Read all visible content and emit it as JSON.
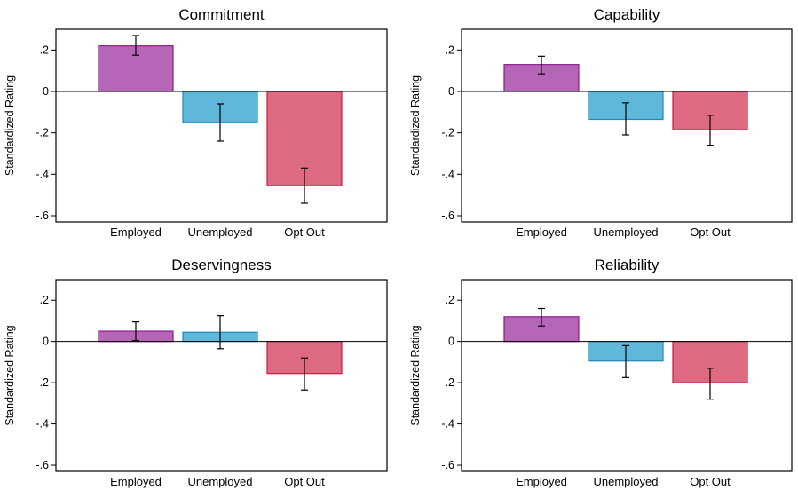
{
  "chart_data": [
    {
      "type": "bar",
      "title": "Commitment",
      "ylabel": "Standardized Rating",
      "xlabel": "",
      "categories": [
        "Employed",
        "Unemployed",
        "Opt Out"
      ],
      "values": [
        0.22,
        -0.15,
        -0.455
      ],
      "ci_low": [
        0.175,
        -0.24,
        -0.54
      ],
      "ci_high": [
        0.27,
        -0.06,
        -0.37
      ],
      "ylim": [
        -0.63,
        0.3
      ],
      "yticks": [
        ".2",
        "0",
        "-.2",
        "-.4",
        "-.6"
      ],
      "ytick_values": [
        0.2,
        0,
        -0.2,
        -0.4,
        -0.6
      ],
      "grid": false
    },
    {
      "type": "bar",
      "title": "Capability",
      "ylabel": "Standardized Rating",
      "xlabel": "",
      "categories": [
        "Employed",
        "Unemployed",
        "Opt Out"
      ],
      "values": [
        0.13,
        -0.135,
        -0.185
      ],
      "ci_low": [
        0.085,
        -0.21,
        -0.26
      ],
      "ci_high": [
        0.17,
        -0.055,
        -0.115
      ],
      "ylim": [
        -0.63,
        0.3
      ],
      "yticks": [
        ".2",
        "0",
        "-.2",
        "-.4",
        "-.6"
      ],
      "ytick_values": [
        0.2,
        0,
        -0.2,
        -0.4,
        -0.6
      ],
      "grid": false
    },
    {
      "type": "bar",
      "title": "Deservingness",
      "ylabel": "Standardized Rating",
      "xlabel": "",
      "categories": [
        "Employed",
        "Unemployed",
        "Opt Out"
      ],
      "values": [
        0.05,
        0.045,
        -0.155
      ],
      "ci_low": [
        0.005,
        -0.035,
        -0.235
      ],
      "ci_high": [
        0.095,
        0.125,
        -0.08
      ],
      "ylim": [
        -0.63,
        0.3
      ],
      "yticks": [
        ".2",
        "0",
        "-.2",
        "-.4",
        "-.6"
      ],
      "ytick_values": [
        0.2,
        0,
        -0.2,
        -0.4,
        -0.6
      ],
      "grid": false
    },
    {
      "type": "bar",
      "title": "Reliability",
      "ylabel": "Standardized Rating",
      "xlabel": "",
      "categories": [
        "Employed",
        "Unemployed",
        "Opt Out"
      ],
      "values": [
        0.12,
        -0.095,
        -0.2
      ],
      "ci_low": [
        0.075,
        -0.175,
        -0.28
      ],
      "ci_high": [
        0.16,
        -0.02,
        -0.13
      ],
      "ylim": [
        -0.63,
        0.3
      ],
      "yticks": [
        ".2",
        "0",
        "-.2",
        "-.4",
        "-.6"
      ],
      "ytick_values": [
        0.2,
        0,
        -0.2,
        -0.4,
        -0.6
      ],
      "grid": false
    }
  ],
  "colors": {
    "Employed": {
      "fill": "#b566b6",
      "stroke": "#8e1a90"
    },
    "Unemployed": {
      "fill": "#5fb7d9",
      "stroke": "#1c8ab5"
    },
    "Opt Out": {
      "fill": "#de6a82",
      "stroke": "#c41d46"
    }
  }
}
